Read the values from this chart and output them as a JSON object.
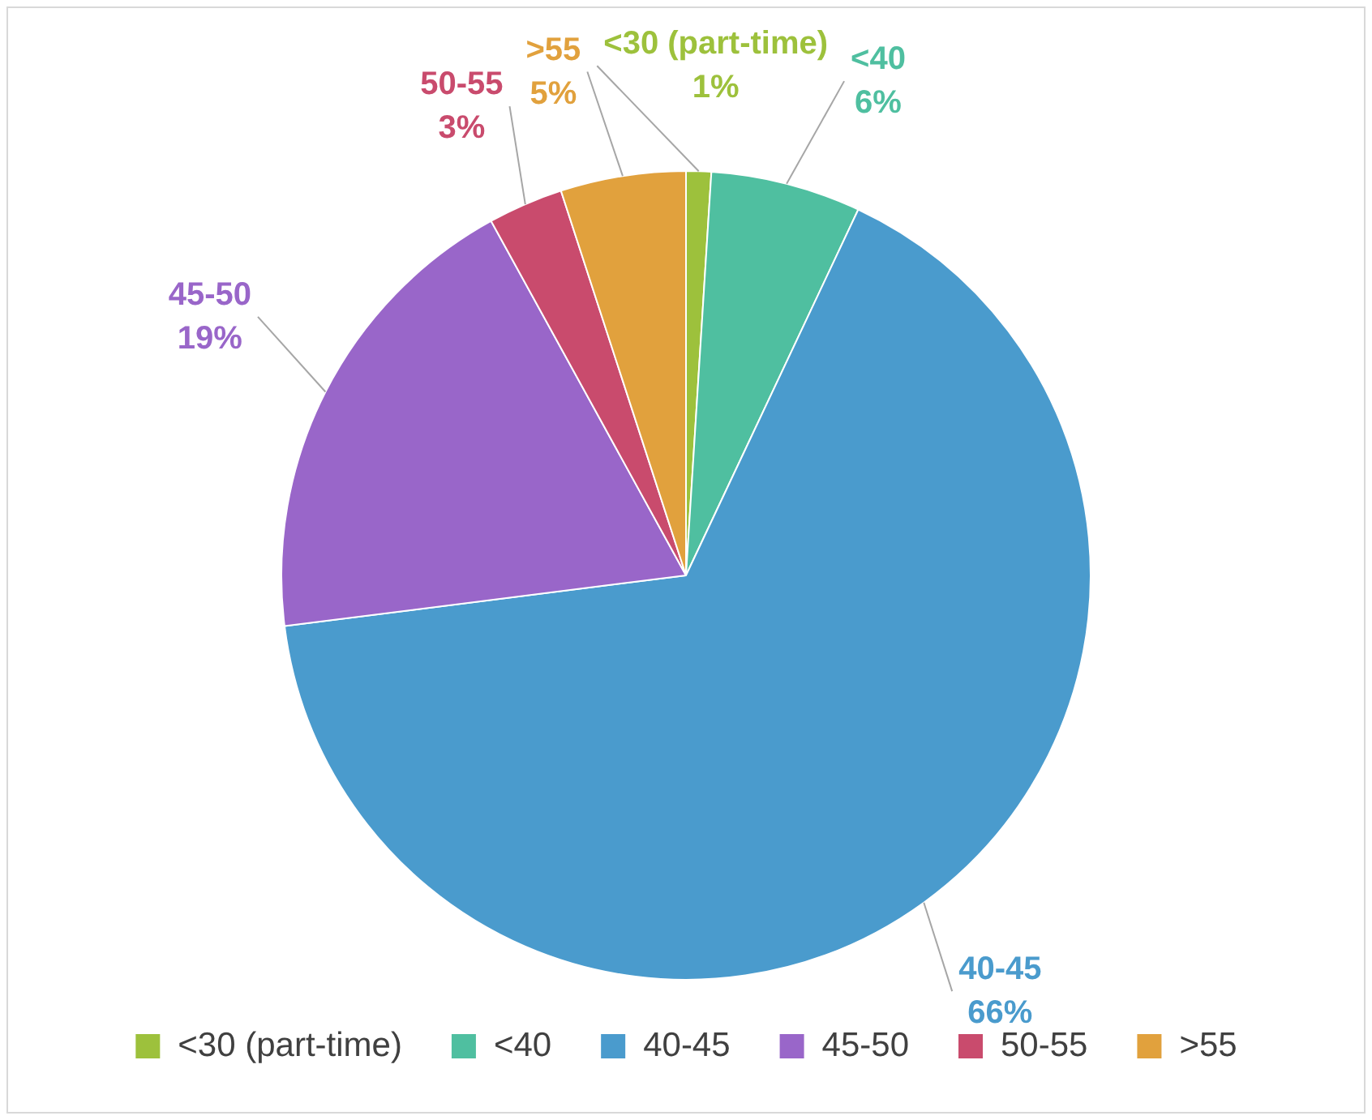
{
  "chart_data": {
    "type": "pie",
    "categories": [
      "<30 (part-time)",
      "<40",
      "40-45",
      "45-50",
      "50-55",
      ">55"
    ],
    "values": [
      1,
      6,
      66,
      19,
      3,
      5
    ],
    "value_labels": [
      "1%",
      "6%",
      "66%",
      "19%",
      "3%",
      "5%"
    ],
    "colors": [
      "#9dc13c",
      "#4fbfa0",
      "#4a9bcd",
      "#9966c9",
      "#c94b6d",
      "#e1a13d"
    ],
    "legend": "bottom"
  }
}
